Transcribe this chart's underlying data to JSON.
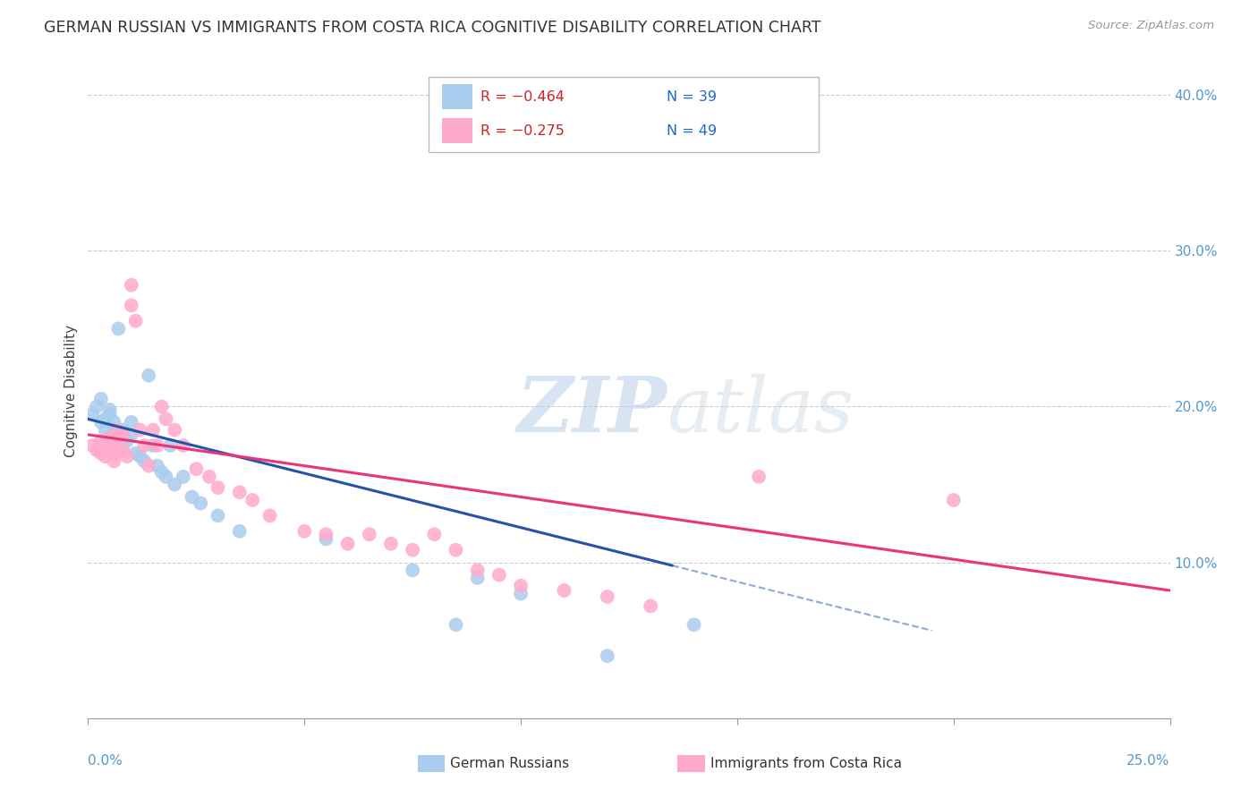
{
  "title": "GERMAN RUSSIAN VS IMMIGRANTS FROM COSTA RICA COGNITIVE DISABILITY CORRELATION CHART",
  "source": "Source: ZipAtlas.com",
  "ylabel": "Cognitive Disability",
  "y_ticks": [
    0.1,
    0.2,
    0.3,
    0.4
  ],
  "y_tick_labels": [
    "10.0%",
    "20.0%",
    "30.0%",
    "40.0%"
  ],
  "xlim": [
    0.0,
    0.25
  ],
  "ylim": [
    0.0,
    0.42
  ],
  "series1_label": "German Russians",
  "series1_R": "R = −0.464",
  "series1_N": "N = 39",
  "series1_color": "#aaccee",
  "series1_line_color": "#2255aa",
  "series2_label": "Immigrants from Costa Rica",
  "series2_R": "R = −0.275",
  "series2_N": "N = 49",
  "series2_color": "#ffaacc",
  "series2_line_color": "#ee3377",
  "background_color": "#ffffff",
  "grid_color": "#cccccc",
  "axis_color": "#5599cc",
  "legend_R_color": "#cc2222",
  "legend_N_color": "#2266cc",
  "gr_x": [
    0.001,
    0.002,
    0.003,
    0.003,
    0.004,
    0.004,
    0.005,
    0.005,
    0.006,
    0.006,
    0.007,
    0.007,
    0.008,
    0.008,
    0.009,
    0.01,
    0.01,
    0.011,
    0.012,
    0.013,
    0.014,
    0.015,
    0.016,
    0.017,
    0.018,
    0.019,
    0.02,
    0.022,
    0.024,
    0.026,
    0.03,
    0.035,
    0.055,
    0.075,
    0.085,
    0.09,
    0.1,
    0.12,
    0.14
  ],
  "gr_y": [
    0.195,
    0.2,
    0.19,
    0.205,
    0.185,
    0.192,
    0.195,
    0.198,
    0.185,
    0.19,
    0.25,
    0.18,
    0.175,
    0.185,
    0.178,
    0.19,
    0.182,
    0.17,
    0.168,
    0.165,
    0.22,
    0.175,
    0.162,
    0.158,
    0.155,
    0.175,
    0.15,
    0.155,
    0.142,
    0.138,
    0.13,
    0.12,
    0.115,
    0.095,
    0.06,
    0.09,
    0.08,
    0.04,
    0.06
  ],
  "cr_x": [
    0.001,
    0.002,
    0.003,
    0.003,
    0.004,
    0.004,
    0.005,
    0.005,
    0.006,
    0.006,
    0.007,
    0.007,
    0.008,
    0.008,
    0.009,
    0.01,
    0.01,
    0.011,
    0.012,
    0.013,
    0.014,
    0.015,
    0.016,
    0.017,
    0.018,
    0.02,
    0.022,
    0.025,
    0.028,
    0.03,
    0.035,
    0.038,
    0.042,
    0.05,
    0.055,
    0.06,
    0.065,
    0.07,
    0.075,
    0.08,
    0.085,
    0.09,
    0.095,
    0.1,
    0.11,
    0.12,
    0.13,
    0.155,
    0.2
  ],
  "cr_y": [
    0.175,
    0.172,
    0.17,
    0.178,
    0.168,
    0.175,
    0.18,
    0.172,
    0.165,
    0.17,
    0.185,
    0.178,
    0.172,
    0.182,
    0.168,
    0.278,
    0.265,
    0.255,
    0.185,
    0.175,
    0.162,
    0.185,
    0.175,
    0.2,
    0.192,
    0.185,
    0.175,
    0.16,
    0.155,
    0.148,
    0.145,
    0.14,
    0.13,
    0.12,
    0.118,
    0.112,
    0.118,
    0.112,
    0.108,
    0.118,
    0.108,
    0.095,
    0.092,
    0.085,
    0.082,
    0.078,
    0.072,
    0.155,
    0.14
  ],
  "gr_line_x0": 0.0,
  "gr_line_x1": 0.135,
  "gr_line_dash_x0": 0.135,
  "gr_line_dash_x1": 0.195,
  "gr_line_y0": 0.192,
  "gr_line_y1": 0.098,
  "cr_line_x0": 0.0,
  "cr_line_x1": 0.25,
  "cr_line_y0": 0.182,
  "cr_line_y1": 0.082
}
